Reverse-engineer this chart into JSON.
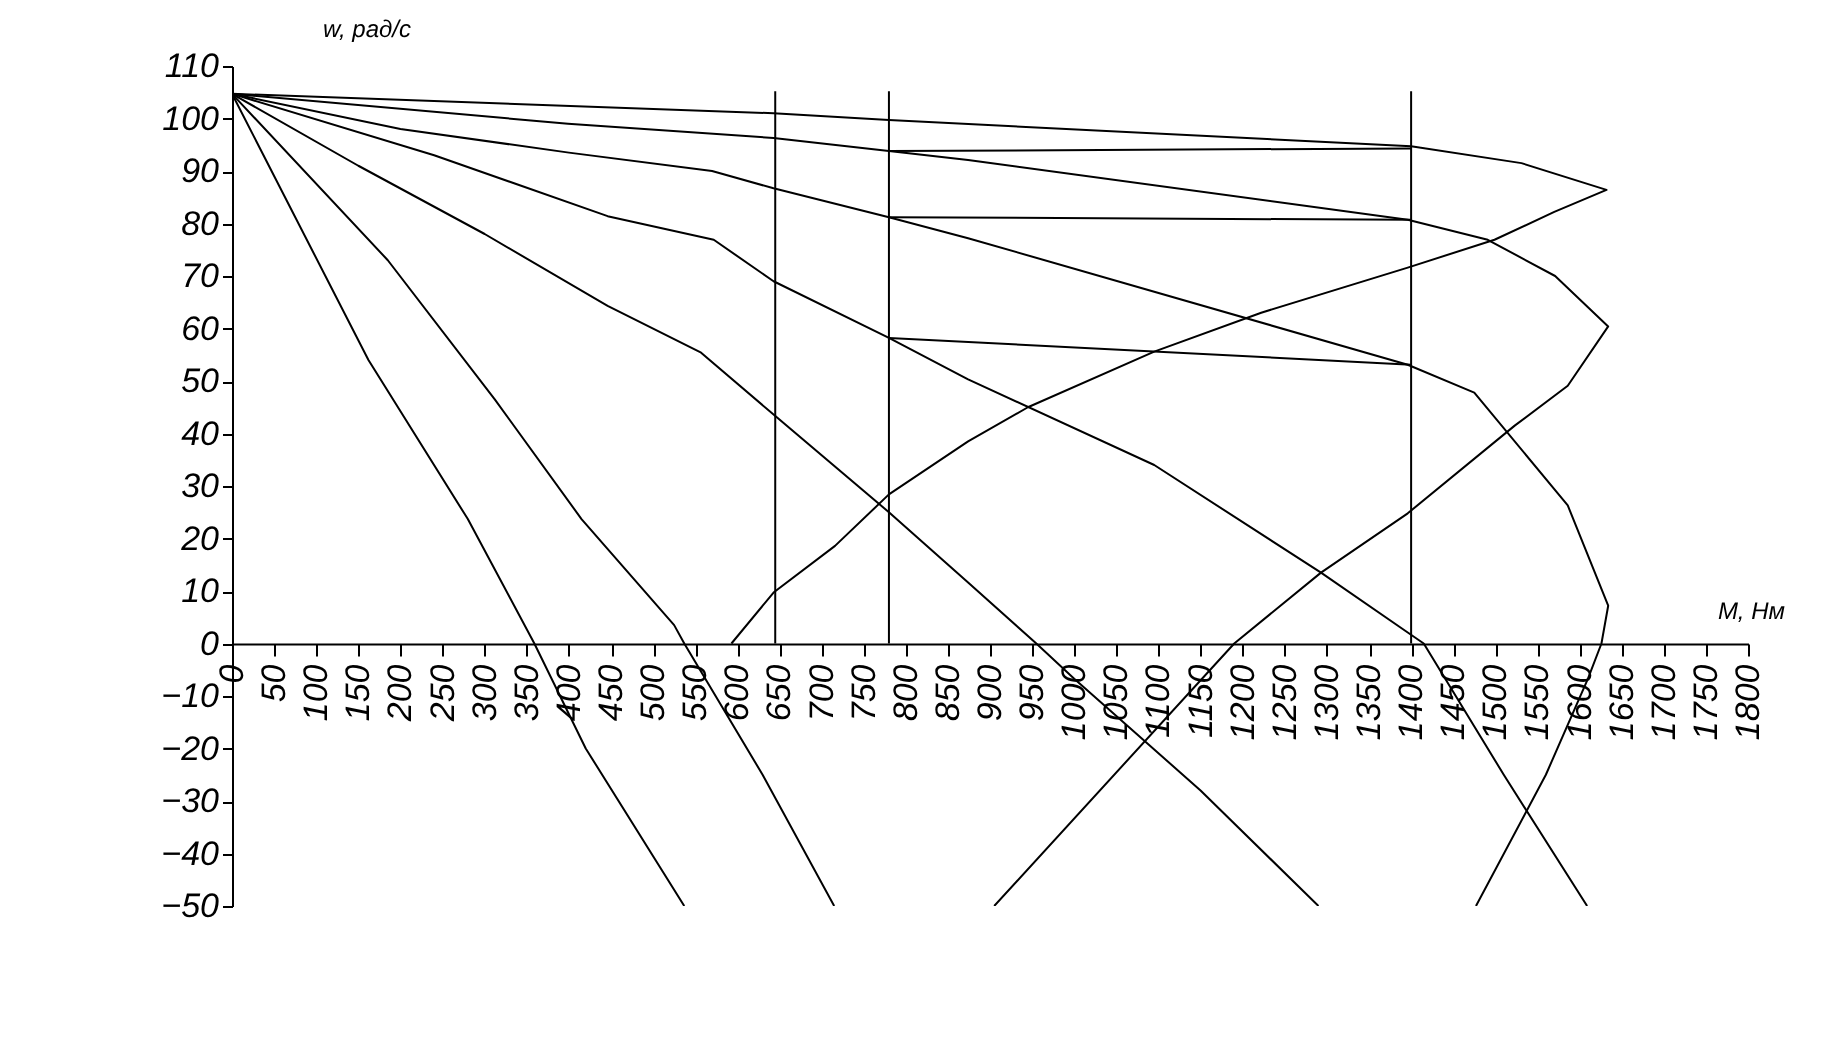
{
  "chart_data": {
    "type": "line",
    "xlabel": "M, Нм",
    "ylabel": "w, рад/с",
    "xlim": [
      0,
      1800
    ],
    "xticks": [
      0,
      50,
      100,
      150,
      200,
      250,
      300,
      350,
      400,
      450,
      500,
      550,
      600,
      650,
      700,
      750,
      800,
      850,
      900,
      950,
      1000,
      1050,
      1100,
      1150,
      1200,
      1250,
      1300,
      1350,
      1400,
      1450,
      1500,
      1550,
      1600,
      1650,
      1700,
      1750,
      1800
    ],
    "ylim": [
      -50,
      110
    ],
    "yticks": [
      -50,
      -40,
      -30,
      -20,
      -10,
      0,
      10,
      20,
      30,
      40,
      50,
      60,
      70,
      80,
      90,
      100,
      110
    ],
    "grid": false,
    "legend": false,
    "marker": "none",
    "line_style": "solid",
    "series": [
      {
        "color": "#000000",
        "x": [
          0,
          643,
          780,
          1400,
          1531,
          1632,
          1570,
          1499,
          1396,
          1222,
          1095,
          945,
          874,
          780,
          716,
          643,
          593
        ],
        "values": [
          104.7,
          101,
          99.7,
          94.7,
          91.5,
          86.4,
          82.2,
          76.9,
          71.6,
          63,
          55.6,
          45,
          38.5,
          28.4,
          18.6,
          9.7,
          0
        ]
      },
      {
        "color": "#000000",
        "x": [
          0,
          399,
          643,
          780,
          874,
          1396,
          1491,
          1571,
          1634,
          1586,
          1523,
          1396,
          1293,
          1190,
          905
        ],
        "values": [
          104.7,
          99,
          96.3,
          93.8,
          92.1,
          80.7,
          76.9,
          70,
          60.4,
          49.1,
          41.5,
          24.8,
          13.5,
          0,
          -50
        ]
      },
      {
        "color": "#000000",
        "x": [
          0,
          200,
          400,
          570,
          643,
          780,
          874,
          1396,
          1475,
          1586,
          1634,
          1626,
          1610,
          1560,
          1477
        ],
        "values": [
          104.7,
          98,
          93.5,
          90,
          86.7,
          81.2,
          77.2,
          53.1,
          47.8,
          26.3,
          7.2,
          0,
          -6.7,
          -25,
          -50
        ]
      },
      {
        "color": "#000000",
        "x": [
          0,
          240,
          446,
          572,
          643,
          780,
          874,
          1095,
          1293,
          1396,
          1415,
          1510,
          1609
        ],
        "values": [
          104.7,
          93,
          81.4,
          76.9,
          69,
          58.2,
          50.3,
          34,
          13.5,
          2.1,
          0,
          -25,
          -50
        ]
      },
      {
        "color": "#000000",
        "x": [
          0,
          150,
          300,
          446,
          557,
          643,
          780,
          874,
          955,
          1000,
          1150,
          1290
        ],
        "values": [
          104.7,
          91,
          78,
          64.3,
          55.4,
          43.6,
          25,
          11.6,
          0,
          -6.7,
          -28,
          -50
        ]
      },
      {
        "color": "#000000",
        "x": [
          0,
          185,
          312,
          415,
          525,
          537,
          630,
          715
        ],
        "values": [
          104.7,
          73,
          46.5,
          23.7,
          3.5,
          0,
          -25,
          -50
        ]
      },
      {
        "color": "#000000",
        "x": [
          0,
          162,
          280,
          359,
          420,
          537
        ],
        "values": [
          104.7,
          54,
          23.7,
          0,
          -20,
          -50
        ]
      },
      {
        "color": "#000000",
        "x": [
          780,
          1400
        ],
        "values": [
          93.8,
          94.3
        ]
      },
      {
        "color": "#000000",
        "x": [
          780,
          1400
        ],
        "values": [
          81.2,
          80.7
        ]
      },
      {
        "color": "#000000",
        "x": [
          780,
          1400
        ],
        "values": [
          58.2,
          53.1
        ]
      },
      {
        "color": "#000000",
        "x": [
          645,
          645
        ],
        "values": [
          0,
          105.2
        ]
      },
      {
        "color": "#000000",
        "x": [
          780,
          780
        ],
        "values": [
          0,
          105.2
        ]
      },
      {
        "color": "#000000",
        "x": [
          1400,
          1400
        ],
        "values": [
          0,
          105.2
        ]
      }
    ]
  }
}
